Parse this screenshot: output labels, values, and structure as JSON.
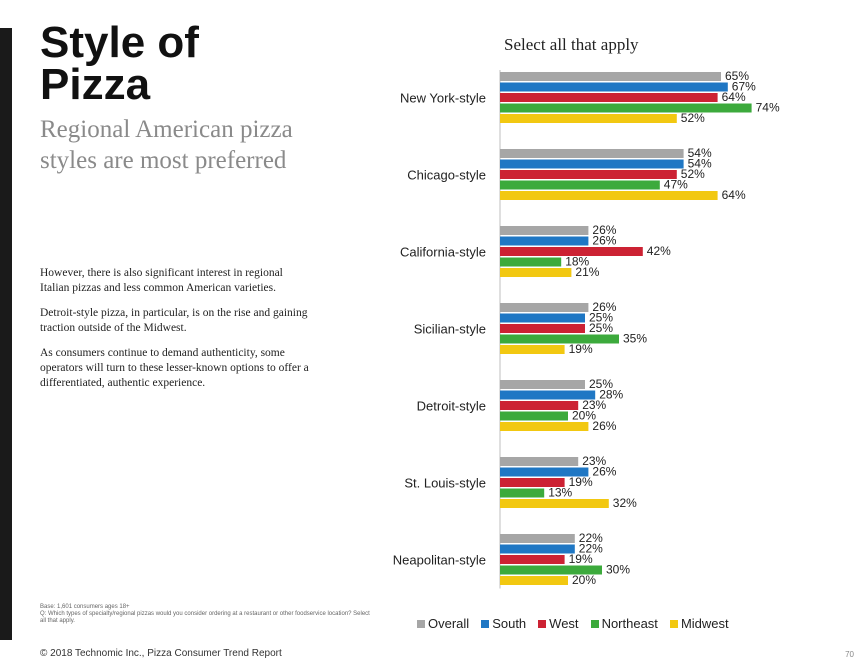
{
  "slide": {
    "title": "Style of Pizza",
    "subtitle": "Regional American pizza styles are most preferred",
    "paragraphs": [
      "However, there is also significant interest in regional Italian pizzas and less common American varieties.",
      "Detroit-style pizza, in particular, is on the rise and gaining traction outside of the Midwest.",
      "As consumers continue to demand authenticity, some operators will turn to these lesser-known options to offer a differentiated, authentic experience."
    ],
    "footnote_base": "Base: 1,601 consumers ages 18+",
    "footnote_question": "Q: Which types of specialty/regional pizzas would you consider ordering at a restaurant or other foodservice location? Select all that apply.",
    "footer": "© 2018 Technomic Inc., Pizza Consumer Trend Report",
    "page_number": "70"
  },
  "chart_data": {
    "type": "bar",
    "orientation": "horizontal",
    "title": "Select all that apply",
    "categories": [
      "New York-style",
      "Chicago-style",
      "California-style",
      "Sicilian-style",
      "Detroit-style",
      "St. Louis-style",
      "Neapolitan-style"
    ],
    "series": [
      {
        "name": "Overall",
        "color": "#a6a6a6",
        "values": [
          65,
          54,
          26,
          26,
          25,
          23,
          22
        ]
      },
      {
        "name": "South",
        "color": "#1f77c4",
        "values": [
          67,
          54,
          26,
          25,
          28,
          26,
          22
        ]
      },
      {
        "name": "West",
        "color": "#cc2233",
        "values": [
          64,
          52,
          42,
          25,
          23,
          19,
          19
        ]
      },
      {
        "name": "Northeast",
        "color": "#3caa3c",
        "values": [
          74,
          47,
          18,
          35,
          20,
          13,
          30
        ]
      },
      {
        "name": "Midwest",
        "color": "#f2c811",
        "values": [
          52,
          64,
          21,
          19,
          26,
          32,
          20
        ]
      }
    ],
    "value_suffix": "%",
    "xlim": [
      0,
      80
    ],
    "legend_position": "bottom",
    "grid": false
  }
}
